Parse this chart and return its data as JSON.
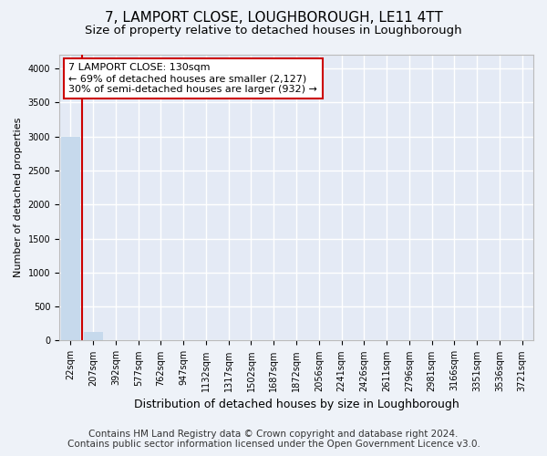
{
  "title": "7, LAMPORT CLOSE, LOUGHBOROUGH, LE11 4TT",
  "subtitle": "Size of property relative to detached houses in Loughborough",
  "xlabel": "Distribution of detached houses by size in Loughborough",
  "ylabel": "Number of detached properties",
  "categories": [
    "22sqm",
    "207sqm",
    "392sqm",
    "577sqm",
    "762sqm",
    "947sqm",
    "1132sqm",
    "1317sqm",
    "1502sqm",
    "1687sqm",
    "1872sqm",
    "2056sqm",
    "2241sqm",
    "2426sqm",
    "2611sqm",
    "2796sqm",
    "2981sqm",
    "3166sqm",
    "3351sqm",
    "3536sqm",
    "3721sqm"
  ],
  "values": [
    3000,
    130,
    0,
    0,
    0,
    0,
    0,
    0,
    0,
    0,
    0,
    0,
    0,
    0,
    0,
    0,
    0,
    0,
    0,
    0,
    0
  ],
  "bar_color": "#c6d9ec",
  "property_line_x": 0.5,
  "property_line_color": "#cc0000",
  "annotation_line1": "7 LAMPORT CLOSE: 130sqm",
  "annotation_line2": "← 69% of detached houses are smaller (2,127)",
  "annotation_line3": "30% of semi-detached houses are larger (932) →",
  "annotation_box_color": "#cc0000",
  "ylim": [
    0,
    4200
  ],
  "yticks": [
    0,
    500,
    1000,
    1500,
    2000,
    2500,
    3000,
    3500,
    4000
  ],
  "background_color": "#eef2f8",
  "plot_bg_color": "#e4eaf5",
  "grid_color": "#ffffff",
  "footer_line1": "Contains HM Land Registry data © Crown copyright and database right 2024.",
  "footer_line2": "Contains public sector information licensed under the Open Government Licence v3.0.",
  "title_fontsize": 11,
  "subtitle_fontsize": 9.5,
  "ylabel_fontsize": 8,
  "xlabel_fontsize": 9,
  "footer_fontsize": 7.5,
  "tick_fontsize": 7,
  "annotation_fontsize": 8
}
